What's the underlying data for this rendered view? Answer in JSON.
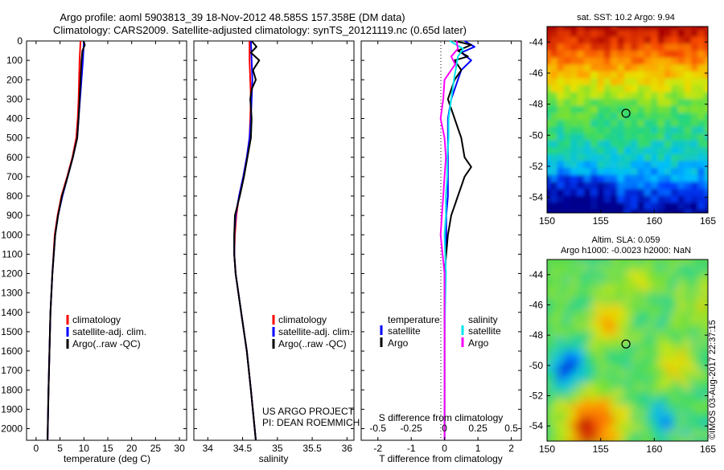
{
  "header": {
    "line1": "Argo profile: aoml 5903813_39 18-Nov-2012 48.585S 157.358E (DM data)",
    "line2": "Climatology: CARS2009. Satellite-adjusted climatology: synTS_20121119.nc (0.65d later)"
  },
  "colors": {
    "climatology": "#ff0000",
    "satellite": "#0000ff",
    "argo": "#000000",
    "sat_sal": "#00e5ee",
    "argo_sal": "#ff00ff"
  },
  "depth_ticks": [
    "0",
    "100",
    "200",
    "300",
    "400",
    "500",
    "600",
    "700",
    "800",
    "900",
    "1000",
    "1100",
    "1200",
    "1300",
    "1400",
    "1500",
    "1600",
    "1700",
    "1800",
    "1900",
    "2000"
  ],
  "chart_data": [
    {
      "type": "line",
      "xlabel": "temperature (deg C)",
      "ylabel": "",
      "xlim": [
        -2,
        31.5
      ],
      "ylim": [
        2060,
        0
      ],
      "xticks": [
        "0",
        "5",
        "10",
        "15",
        "20",
        "25",
        "30"
      ],
      "legend": {
        "placement": "lower-center",
        "entries": [
          "climatology",
          "satellite-adj. clim.",
          "Argo(..raw -QC)"
        ]
      },
      "series": [
        {
          "name": "climatology",
          "depth": [
            0,
            50,
            100,
            200,
            300,
            400,
            500,
            600,
            700,
            800,
            900,
            1000,
            1200,
            1400,
            1600,
            1800,
            2060
          ],
          "values": [
            9.3,
            9.2,
            9.1,
            9.0,
            8.9,
            8.7,
            8.4,
            7.6,
            6.5,
            5.3,
            4.5,
            3.9,
            3.4,
            3.0,
            2.8,
            2.6,
            2.4
          ]
        },
        {
          "name": "satellite-adj. clim.",
          "depth": [
            0,
            50,
            100,
            200,
            300,
            400,
            500,
            600,
            700,
            800,
            900,
            1000,
            1200,
            1400,
            1600,
            1800,
            2060
          ],
          "values": [
            10.0,
            9.9,
            9.8,
            9.5,
            9.2,
            8.9,
            8.6,
            7.7,
            6.6,
            5.5,
            4.6,
            4.0,
            3.4,
            3.0,
            2.8,
            2.6,
            2.4
          ]
        },
        {
          "name": "Argo(..raw -QC)",
          "depth": [
            0,
            20,
            50,
            100,
            200,
            300,
            400,
            500,
            600,
            700,
            800,
            900,
            1000,
            1200,
            1400,
            1600,
            1800,
            2060
          ],
          "values": [
            9.9,
            10.2,
            9.7,
            9.5,
            9.3,
            9.1,
            8.9,
            8.6,
            7.7,
            6.6,
            5.4,
            4.6,
            4.0,
            3.4,
            3.0,
            2.8,
            2.6,
            2.4
          ]
        }
      ]
    },
    {
      "type": "line",
      "xlabel": "salinity",
      "ylabel": "",
      "xlim": [
        33.8,
        36.1
      ],
      "ylim": [
        2060,
        0
      ],
      "xticks": [
        "34",
        "34.5",
        "35",
        "35.5",
        "36"
      ],
      "legend": {
        "placement": "lower-center",
        "entries": [
          "climatology",
          "satellite-adj. clim.",
          "Argo(..raw -QC)"
        ]
      },
      "annotations": [
        "US ARGO PROJECT",
        "PI: DEAN ROEMMICH"
      ],
      "series": [
        {
          "name": "climatology",
          "depth": [
            0,
            100,
            200,
            300,
            400,
            500,
            600,
            700,
            800,
            900,
            1000,
            1100,
            1200,
            1400,
            1600,
            1800,
            2060
          ],
          "values": [
            34.6,
            34.6,
            34.61,
            34.62,
            34.61,
            34.6,
            34.56,
            34.51,
            34.45,
            34.41,
            34.39,
            34.38,
            34.4,
            34.48,
            34.56,
            34.62,
            34.69
          ]
        },
        {
          "name": "satellite-adj. clim.",
          "depth": [
            0,
            100,
            200,
            300,
            400,
            500,
            600,
            700,
            800,
            900,
            1000,
            1100,
            1200,
            1400,
            1600,
            1800,
            2060
          ],
          "values": [
            34.62,
            34.63,
            34.64,
            34.63,
            34.62,
            34.6,
            34.56,
            34.51,
            34.45,
            34.4,
            34.38,
            34.38,
            34.4,
            34.48,
            34.56,
            34.62,
            34.69
          ]
        },
        {
          "name": "Argo(..raw -QC)",
          "depth": [
            0,
            30,
            60,
            100,
            150,
            200,
            250,
            300,
            400,
            500,
            600,
            700,
            800,
            900,
            1000,
            1100,
            1200,
            1400,
            1600,
            1800,
            2060
          ],
          "values": [
            34.63,
            34.7,
            34.62,
            34.74,
            34.65,
            34.69,
            34.63,
            34.61,
            34.63,
            34.62,
            34.57,
            34.52,
            34.46,
            34.39,
            34.38,
            34.38,
            34.4,
            34.48,
            34.56,
            34.62,
            34.69
          ]
        }
      ]
    },
    {
      "type": "line",
      "xlabel": "T difference from climatology",
      "xlabel2": "S difference from climatology",
      "xlim": [
        -2.5,
        2.3
      ],
      "ylim": [
        2060,
        0
      ],
      "xticks": [
        "-2",
        "-1",
        "0",
        "1",
        "2"
      ],
      "xticks2": [
        "-0.5",
        "-0.25",
        "0",
        "0.25",
        "0.5"
      ],
      "legend": {
        "placement": "lower-center",
        "headers": [
          "temperature",
          "salinity"
        ],
        "entries": [
          "satellite",
          "Argo",
          "satellite",
          "Argo"
        ]
      },
      "series": [
        {
          "name": "temperature satellite",
          "depth": [
            0,
            30,
            60,
            100,
            150,
            200,
            300,
            400,
            500,
            600,
            700,
            800,
            900,
            1000,
            1200,
            1500,
            1800,
            2060
          ],
          "values": [
            0.6,
            0.9,
            0.5,
            0.8,
            0.5,
            0.4,
            0.2,
            0.1,
            0.1,
            0.1,
            0.1,
            0.1,
            0.05,
            0.05,
            0.02,
            0.0,
            0.0,
            0.0
          ]
        },
        {
          "name": "temperature Argo",
          "depth": [
            0,
            20,
            50,
            80,
            100,
            150,
            200,
            300,
            400,
            450,
            500,
            600,
            650,
            700,
            750,
            800,
            850,
            900,
            1000,
            1200,
            1500,
            1800,
            2060
          ],
          "values": [
            0.3,
            0.8,
            0.4,
            0.7,
            0.3,
            0.5,
            0.3,
            0.1,
            0.3,
            0.4,
            0.5,
            0.6,
            0.8,
            0.6,
            0.5,
            0.4,
            0.3,
            0.2,
            0.1,
            0.0,
            0.0,
            0.0,
            0.0
          ]
        },
        {
          "name": "salinity satellite",
          "depth": [
            0,
            40,
            80,
            120,
            200,
            300,
            400,
            500,
            600,
            700,
            800,
            900,
            1000,
            1200,
            1500,
            1800,
            2060
          ],
          "values": [
            0.04,
            0.14,
            0.1,
            0.09,
            0.07,
            0.05,
            0.03,
            0.03,
            0.02,
            0.02,
            0.01,
            0.01,
            0.0,
            0.01,
            0.0,
            0.0,
            0.0
          ]
        },
        {
          "name": "salinity Argo",
          "depth": [
            0,
            40,
            80,
            120,
            200,
            300,
            400,
            500,
            600,
            700,
            800,
            900,
            1000,
            1200,
            1500,
            1800,
            2060
          ],
          "values": [
            0.09,
            0.1,
            0.05,
            0.08,
            0.0,
            -0.01,
            -0.03,
            0.0,
            0.01,
            0.0,
            -0.01,
            -0.02,
            -0.03,
            0.0,
            0.0,
            0.0,
            0.0
          ]
        }
      ]
    },
    {
      "type": "heatmap",
      "title": "sat. SST: 10.2 Argo: 9.94",
      "xlim": [
        150,
        165
      ],
      "ylim": [
        -55,
        -43
      ],
      "xticks": [
        "150",
        "155",
        "160",
        "165"
      ],
      "yticks": [
        "-44",
        "-46",
        "-48",
        "-50",
        "-52",
        "-54"
      ],
      "marker": {
        "lon": 157.358,
        "lat": -48.585
      }
    },
    {
      "type": "heatmap",
      "title": "Altim. SLA: 0.059",
      "subtitle": "Argo h1000: -0.0023 h2000: NaN",
      "xlim": [
        150,
        165
      ],
      "ylim": [
        -55,
        -43
      ],
      "xticks": [
        "150",
        "155",
        "160",
        "165"
      ],
      "yticks": [
        "-44",
        "-46",
        "-48",
        "-50",
        "-52",
        "-54"
      ],
      "marker": {
        "lon": 157.358,
        "lat": -48.585
      }
    }
  ],
  "credit": "©IMOS 03-Aug-2017 22:37:15"
}
